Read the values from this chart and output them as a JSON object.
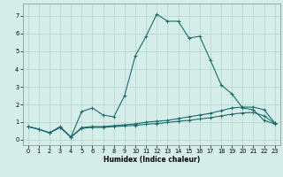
{
  "xlabel": "Humidex (Indice chaleur)",
  "bg_color": "#d5eee9",
  "grid_color": "#b8d8d2",
  "line_color": "#1a6b6b",
  "xlim": [
    -0.5,
    23.5
  ],
  "ylim": [
    -0.3,
    7.7
  ],
  "xticks": [
    0,
    1,
    2,
    3,
    4,
    5,
    6,
    7,
    8,
    9,
    10,
    11,
    12,
    13,
    14,
    15,
    16,
    17,
    18,
    19,
    20,
    21,
    22,
    23
  ],
  "yticks": [
    0,
    1,
    2,
    3,
    4,
    5,
    6,
    7
  ],
  "series1_x": [
    0,
    1,
    2,
    3,
    4,
    5,
    6,
    7,
    8,
    9,
    10,
    11,
    12,
    13,
    14,
    15,
    16,
    17,
    18,
    19,
    20,
    21,
    22,
    23
  ],
  "series1_y": [
    0.75,
    0.6,
    0.4,
    0.75,
    0.15,
    1.6,
    1.8,
    1.4,
    1.3,
    2.5,
    4.75,
    5.85,
    7.1,
    6.7,
    6.7,
    5.75,
    5.85,
    4.5,
    3.1,
    2.6,
    1.8,
    1.7,
    1.1,
    0.9
  ],
  "series2_x": [
    0,
    1,
    2,
    3,
    4,
    5,
    6,
    7,
    8,
    9,
    10,
    11,
    12,
    13,
    14,
    15,
    16,
    17,
    18,
    19,
    20,
    21,
    22,
    23
  ],
  "series2_y": [
    0.75,
    0.6,
    0.4,
    0.7,
    0.15,
    0.7,
    0.75,
    0.75,
    0.8,
    0.85,
    0.9,
    1.0,
    1.05,
    1.1,
    1.2,
    1.3,
    1.4,
    1.5,
    1.65,
    1.8,
    1.85,
    1.85,
    1.7,
    0.95
  ],
  "series3_x": [
    0,
    1,
    2,
    3,
    4,
    5,
    6,
    7,
    8,
    9,
    10,
    11,
    12,
    13,
    14,
    15,
    16,
    17,
    18,
    19,
    20,
    21,
    22,
    23
  ],
  "series3_y": [
    0.75,
    0.6,
    0.4,
    0.7,
    0.15,
    0.65,
    0.7,
    0.7,
    0.75,
    0.78,
    0.82,
    0.88,
    0.92,
    0.98,
    1.05,
    1.1,
    1.18,
    1.25,
    1.35,
    1.45,
    1.52,
    1.55,
    1.35,
    0.93
  ],
  "xlabel_fontsize": 5.5,
  "tick_fontsize": 4.8,
  "line_width": 0.8,
  "marker_size": 2.5
}
